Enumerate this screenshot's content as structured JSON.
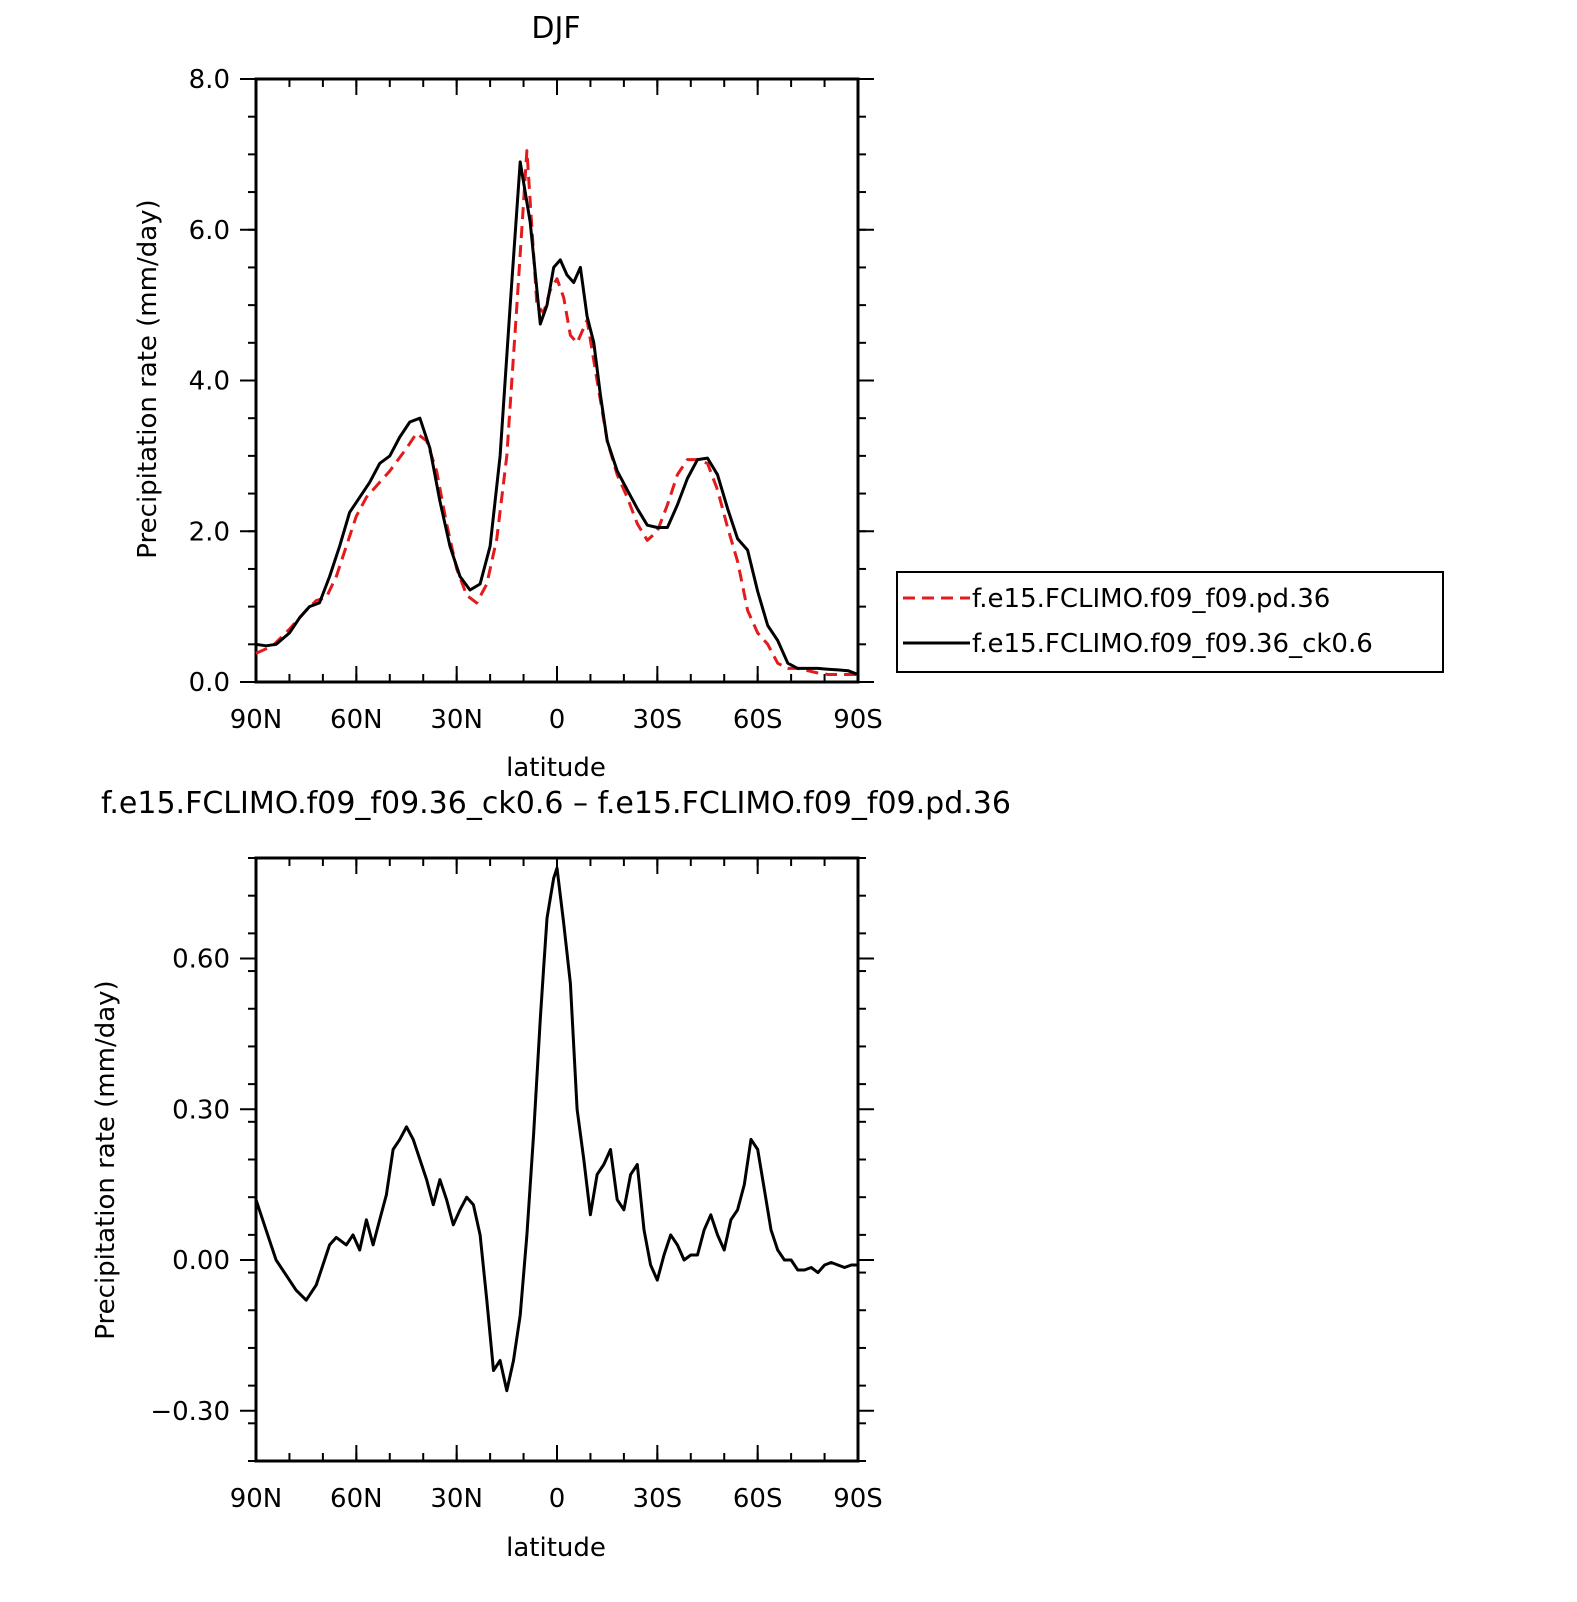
{
  "colors": {
    "series_a": "#e41a1c",
    "series_b": "#000000",
    "axis": "#000000"
  },
  "chart_data": [
    {
      "type": "line",
      "title": "DJF",
      "xlabel": "latitude",
      "ylabel": "Precipitation rate (mm/day)",
      "xlim": [
        90,
        -90
      ],
      "ylim": [
        0,
        8
      ],
      "x_ticks": [
        90,
        60,
        30,
        0,
        -30,
        -60,
        -90
      ],
      "x_tick_labels": [
        "90N",
        "60N",
        "30N",
        "0",
        "30S",
        "60S",
        "90S"
      ],
      "y_ticks": [
        0,
        2,
        4,
        6,
        8
      ],
      "y_tick_labels": [
        "0.0",
        "2.0",
        "4.0",
        "6.0",
        "8.0"
      ],
      "grid": false,
      "legend_position": "right",
      "series": [
        {
          "name": "f.e15.FCLIMO.f09_f09.pd.36",
          "style": "dashed",
          "color": "#e41a1c",
          "x": [
            90,
            85,
            80,
            75,
            72,
            69,
            66,
            63,
            60,
            57,
            54,
            50,
            45,
            42,
            39,
            36,
            33,
            30,
            27,
            24,
            21,
            18,
            15,
            12,
            9,
            6,
            4,
            2,
            0,
            -2,
            -4,
            -6,
            -9,
            -12,
            -15,
            -18,
            -21,
            -24,
            -27,
            -30,
            -33,
            -36,
            -39,
            -42,
            -45,
            -48,
            -51,
            -54,
            -57,
            -60,
            -63,
            -66,
            -69,
            -72,
            -75,
            -78,
            -81,
            -84,
            -87,
            -90
          ],
          "y": [
            0.38,
            0.48,
            0.7,
            0.95,
            1.08,
            1.12,
            1.4,
            1.8,
            2.2,
            2.45,
            2.6,
            2.8,
            3.1,
            3.3,
            3.2,
            2.8,
            2.1,
            1.5,
            1.15,
            1.05,
            1.3,
            1.9,
            3.0,
            5.0,
            7.05,
            5.0,
            4.9,
            5.2,
            5.35,
            5.1,
            4.6,
            4.5,
            4.8,
            4.0,
            3.2,
            2.75,
            2.45,
            2.1,
            1.88,
            2.0,
            2.35,
            2.75,
            2.95,
            2.95,
            2.9,
            2.55,
            2.05,
            1.6,
            0.95,
            0.65,
            0.5,
            0.25,
            0.18,
            0.18,
            0.15,
            0.12,
            0.1,
            0.1,
            0.1,
            0.1
          ]
        },
        {
          "name": "f.e15.FCLIMO.f09_f09.36_ck0.6",
          "style": "solid",
          "color": "#000000",
          "x": [
            90,
            87,
            84,
            80,
            77,
            74,
            71,
            68,
            65,
            62,
            59,
            56,
            53,
            50,
            47,
            44,
            41,
            38,
            35,
            32,
            29,
            26,
            23,
            20,
            17,
            14,
            11,
            8,
            5,
            3,
            1,
            -1,
            -3,
            -5,
            -7,
            -9,
            -11,
            -13,
            -15,
            -18,
            -21,
            -24,
            -27,
            -30,
            -33,
            -36,
            -39,
            -42,
            -45,
            -48,
            -51,
            -54,
            -57,
            -60,
            -63,
            -66,
            -69,
            -72,
            -75,
            -78,
            -81,
            -84,
            -87,
            -90
          ],
          "y": [
            0.5,
            0.48,
            0.5,
            0.65,
            0.85,
            1.0,
            1.05,
            1.4,
            1.8,
            2.25,
            2.45,
            2.65,
            2.9,
            3.0,
            3.25,
            3.45,
            3.5,
            3.1,
            2.4,
            1.8,
            1.4,
            1.22,
            1.3,
            1.8,
            3.0,
            5.0,
            6.9,
            6.1,
            4.75,
            5.0,
            5.5,
            5.6,
            5.4,
            5.3,
            5.5,
            4.85,
            4.5,
            3.8,
            3.2,
            2.8,
            2.55,
            2.3,
            2.08,
            2.05,
            2.05,
            2.35,
            2.7,
            2.95,
            2.97,
            2.75,
            2.3,
            1.9,
            1.75,
            1.2,
            0.75,
            0.55,
            0.25,
            0.18,
            0.18,
            0.18,
            0.17,
            0.16,
            0.15,
            0.1
          ]
        }
      ]
    },
    {
      "type": "line",
      "title": "f.e15.FCLIMO.f09_f09.36_ck0.6 – f.e15.FCLIMO.f09_f09.pd.36",
      "xlabel": "latitude",
      "ylabel": "Precipitation rate (mm/day)",
      "xlim": [
        90,
        -90
      ],
      "ylim": [
        -0.4,
        0.8
      ],
      "x_ticks": [
        90,
        60,
        30,
        0,
        -30,
        -60,
        -90
      ],
      "x_tick_labels": [
        "90N",
        "60N",
        "30N",
        "0",
        "30S",
        "60S",
        "90S"
      ],
      "y_ticks": [
        -0.3,
        0,
        0.3,
        0.6
      ],
      "y_tick_labels": [
        "−0.30",
        "0.00",
        "0.30",
        "0.60"
      ],
      "grid": false,
      "series": [
        {
          "style": "solid",
          "color": "#000000",
          "x": [
            90,
            87,
            84,
            81,
            78,
            75,
            72,
            70,
            68,
            66,
            63,
            61,
            59,
            57,
            55,
            53,
            51,
            49,
            47,
            45,
            43,
            41,
            39,
            37,
            35,
            33,
            31,
            29,
            27,
            25,
            23,
            21,
            19,
            17,
            15,
            13,
            11,
            9,
            7,
            5,
            4,
            3,
            2,
            1,
            0,
            -2,
            -4,
            -6,
            -8,
            -10,
            -12,
            -14,
            -16,
            -18,
            -20,
            -22,
            -24,
            -26,
            -28,
            -30,
            -32,
            -34,
            -36,
            -38,
            -40,
            -42,
            -44,
            -46,
            -48,
            -50,
            -52,
            -54,
            -56,
            -58,
            -60,
            -62,
            -64,
            -66,
            -68,
            -70,
            -72,
            -74,
            -76,
            -78,
            -80,
            -82,
            -84,
            -86,
            -88,
            -90
          ],
          "y": [
            0.12,
            0.06,
            0.0,
            -0.03,
            -0.06,
            -0.08,
            -0.05,
            -0.01,
            0.03,
            0.045,
            0.03,
            0.05,
            0.02,
            0.08,
            0.03,
            0.08,
            0.13,
            0.22,
            0.24,
            0.265,
            0.24,
            0.2,
            0.16,
            0.11,
            0.16,
            0.12,
            0.07,
            0.1,
            0.125,
            0.11,
            0.05,
            -0.08,
            -0.22,
            -0.2,
            -0.26,
            -0.2,
            -0.11,
            0.05,
            0.25,
            0.48,
            0.58,
            0.68,
            0.72,
            0.76,
            0.78,
            0.67,
            0.55,
            0.3,
            0.2,
            0.09,
            0.17,
            0.19,
            0.22,
            0.12,
            0.1,
            0.17,
            0.19,
            0.06,
            -0.01,
            -0.04,
            0.01,
            0.05,
            0.03,
            0.0,
            0.01,
            0.01,
            0.06,
            0.09,
            0.05,
            0.02,
            0.08,
            0.1,
            0.15,
            0.24,
            0.22,
            0.14,
            0.06,
            0.02,
            0.0,
            0.0,
            -0.02,
            -0.02,
            -0.015,
            -0.025,
            -0.01,
            -0.005,
            -0.01,
            -0.015,
            -0.01,
            -0.01
          ]
        }
      ]
    }
  ]
}
